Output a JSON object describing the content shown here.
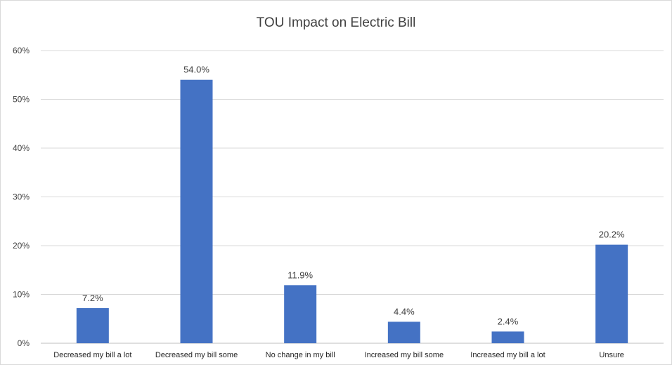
{
  "chart_data": {
    "type": "bar",
    "title": "TOU Impact on Electric Bill",
    "categories": [
      "Decreased my bill a lot",
      "Decreased my bill some",
      "No change in my bill",
      "Increased my bill some",
      "Increased my bill a lot",
      "Unsure"
    ],
    "values": [
      7.2,
      54.0,
      11.9,
      4.4,
      2.4,
      20.2
    ],
    "data_labels": [
      "7.2%",
      "54.0%",
      "11.9%",
      "4.4%",
      "2.4%",
      "20.2%"
    ],
    "yticks": [
      "0%",
      "10%",
      "20%",
      "30%",
      "40%",
      "50%",
      "60%"
    ],
    "ylim": [
      0,
      60
    ],
    "grid": true,
    "bar_color": "#4472C4",
    "grid_color": "#D9D9D9"
  }
}
